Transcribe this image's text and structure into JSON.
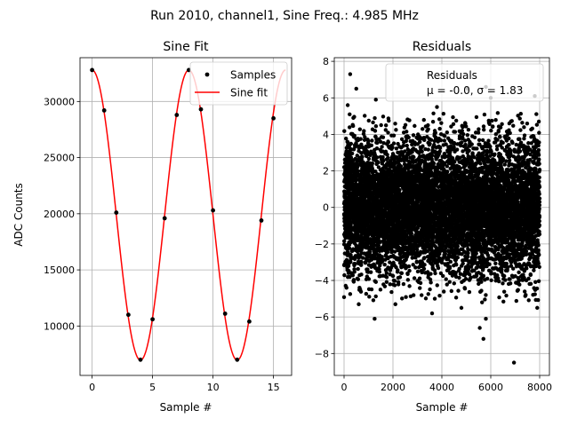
{
  "figure": {
    "suptitle": "Run 2010, channel1, Sine Freq.: 4.985 MHz"
  },
  "chart_data": [
    {
      "type": "line",
      "title": "Sine Fit",
      "xlabel": "Sample #",
      "ylabel": "ADC Counts",
      "xlim": [
        -1.0,
        16.5
      ],
      "ylim": [
        5600,
        33900
      ],
      "xticks": [
        0,
        5,
        10,
        15
      ],
      "yticks": [
        10000,
        15000,
        20000,
        25000,
        30000
      ],
      "grid": true,
      "legend": {
        "position": "top-right",
        "entries": [
          "Samples",
          "Sine fit"
        ]
      },
      "colors": {
        "samples": "#000000",
        "fit": "#ff0000"
      },
      "series": [
        {
          "name": "Samples",
          "kind": "scatter",
          "x": [
            0,
            1,
            2,
            3,
            4,
            5,
            6,
            7,
            8,
            9,
            10,
            11,
            12,
            13,
            14,
            15
          ],
          "y": [
            32800,
            29200,
            20100,
            11000,
            7000,
            10600,
            19600,
            28800,
            32800,
            29300,
            20300,
            11100,
            7000,
            10400,
            19400,
            28500
          ]
        },
        {
          "name": "Sine fit",
          "kind": "line",
          "function": "sine",
          "amplitude": 12920,
          "offset": 19880,
          "period_samples": 8.0,
          "peak_at": 0.0,
          "x_range": [
            0,
            16
          ]
        }
      ]
    },
    {
      "type": "scatter",
      "title": "Residuals",
      "xlabel": "Sample #",
      "xlim": [
        -400,
        8400
      ],
      "ylim": [
        -9.2,
        8.2
      ],
      "xticks": [
        0,
        2000,
        4000,
        6000,
        8000
      ],
      "xtick_labels": [
        "0",
        "2000",
        "4000",
        "6000",
        "8000"
      ],
      "yticks": [
        -8,
        -6,
        -4,
        -2,
        0,
        2,
        4,
        6,
        8
      ],
      "grid": true,
      "legend": {
        "position": "top-right",
        "entries": [
          "Residuals"
        ],
        "stats_text": "μ = -0.0, σ = 1.83"
      },
      "stats": {
        "mean": -0.0,
        "sigma": 1.83,
        "n_samples": 8000
      },
      "colors": {
        "points": "#000000"
      },
      "outliers": [
        {
          "x": 250,
          "y": 7.3
        },
        {
          "x": 500,
          "y": 6.5
        },
        {
          "x": 150,
          "y": 5.6
        },
        {
          "x": 1300,
          "y": 5.9
        },
        {
          "x": 5050,
          "y": 6.5
        },
        {
          "x": 5800,
          "y": 6.6
        },
        {
          "x": 6000,
          "y": 6.0
        },
        {
          "x": 3800,
          "y": 5.5
        },
        {
          "x": 7800,
          "y": 6.1
        },
        {
          "x": 6950,
          "y": -8.5
        },
        {
          "x": 5550,
          "y": -6.6
        },
        {
          "x": 5700,
          "y": -7.2
        },
        {
          "x": 5800,
          "y": -6.1
        },
        {
          "x": 3600,
          "y": -5.8
        },
        {
          "x": 1250,
          "y": -6.1
        },
        {
          "x": 2100,
          "y": -5.3
        },
        {
          "x": 4800,
          "y": -5.5
        },
        {
          "x": 7900,
          "y": -5.5
        },
        {
          "x": 100,
          "y": -4.4
        },
        {
          "x": 600,
          "y": -5.3
        }
      ]
    }
  ]
}
